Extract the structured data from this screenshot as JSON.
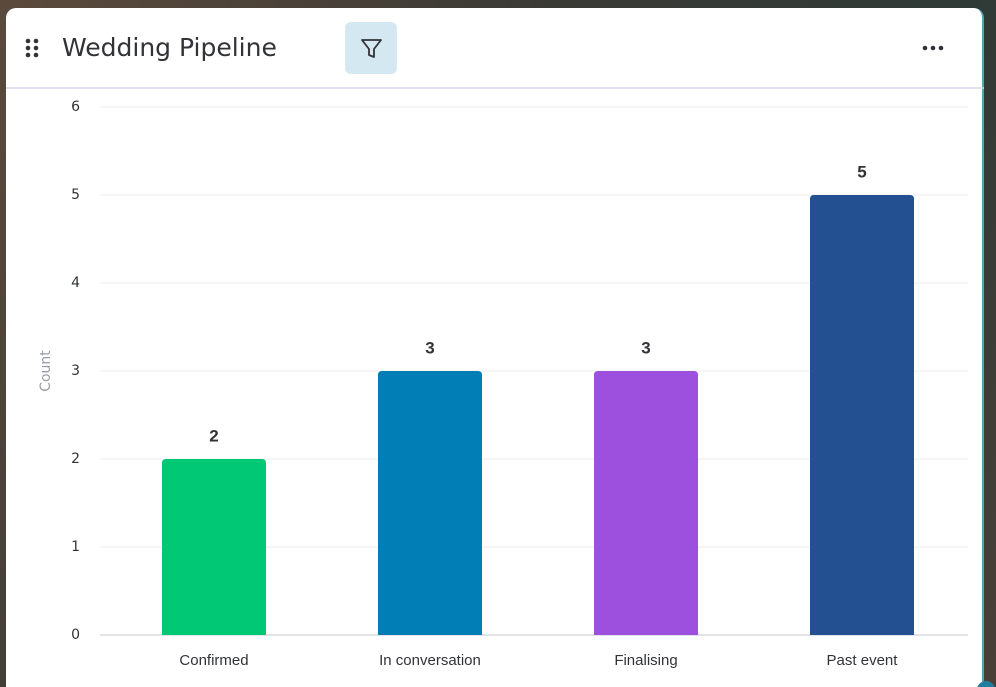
{
  "chart_data": {
    "type": "bar",
    "title": "Wedding Pipeline",
    "y_label": "Count",
    "categories": [
      "Confirmed",
      "In conversation",
      "Finalising",
      "Past event"
    ],
    "values": [
      2,
      3,
      3,
      5
    ],
    "colors": [
      "#00c875",
      "#007eb5",
      "#9d50dd",
      "#225091"
    ],
    "ylim": [
      0,
      6
    ],
    "yticks": [
      0,
      1,
      2,
      3,
      4,
      5,
      6
    ],
    "grid": true
  }
}
